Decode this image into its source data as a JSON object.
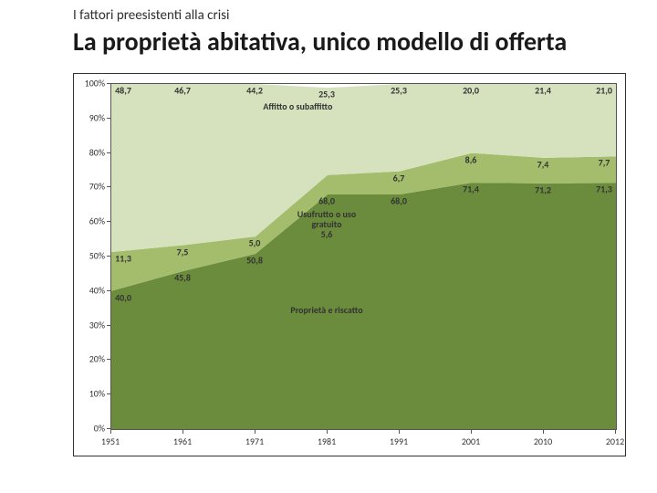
{
  "subtitle": "I fattori preesistenti alla crisi",
  "title": "La proprietà abitativa, unico modello di offerta",
  "chart": {
    "type": "area",
    "background_color": "#ffffff",
    "plot_border_color": "#555555",
    "ylim": [
      0,
      100
    ],
    "ytick_step": 10,
    "ylabel_suffix": "%",
    "categories": [
      "1951",
      "1961",
      "1971",
      "1981",
      "1991",
      "2001",
      "2010",
      "2012"
    ],
    "series": [
      {
        "name": "Proprietà e riscatto",
        "color": "#6a8c3c",
        "values": [
          40.0,
          45.8,
          50.8,
          68.0,
          68.0,
          71.4,
          71.2,
          71.3
        ],
        "label_pos": [
          3,
          34
        ]
      },
      {
        "name": "Usufrutto o uso\ngratuito",
        "color": "#a4bd6d",
        "values": [
          11.3,
          7.5,
          5.0,
          5.6,
          6.7,
          8.6,
          7.4,
          7.7
        ],
        "label_pos": [
          3,
          62
        ],
        "label_value": "5,6"
      },
      {
        "name": "Affitto o subaffitto",
        "color": "#d6e1bd",
        "values": [
          48.7,
          46.7,
          44.2,
          25.3,
          25.3,
          20.0,
          21.4,
          21.0
        ],
        "label_pos": [
          2.6,
          93
        ]
      }
    ],
    "label_fontsize": 10,
    "tick_fontsize": 10
  }
}
